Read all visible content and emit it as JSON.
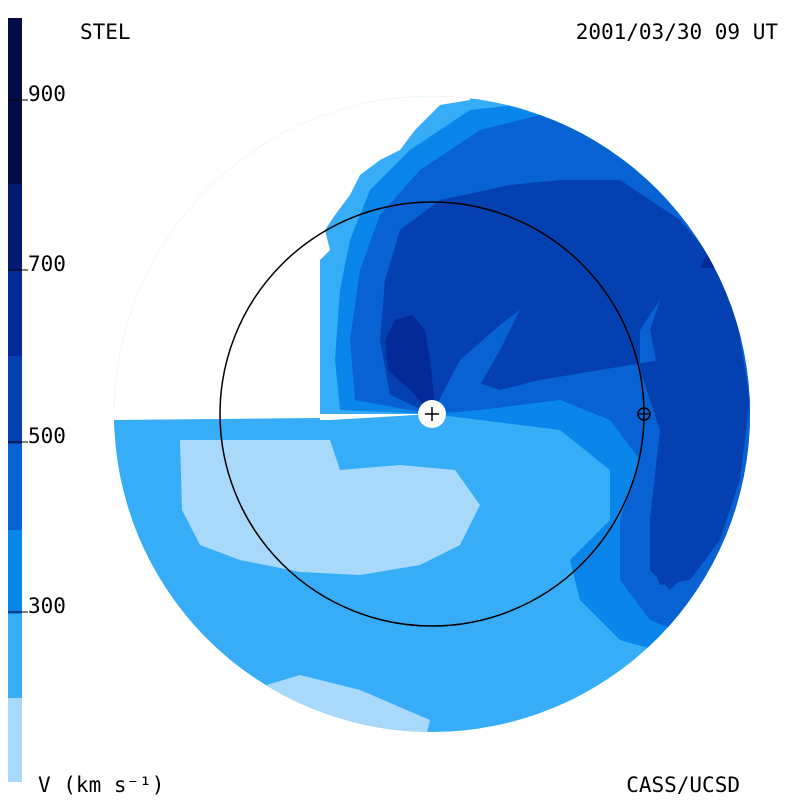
{
  "header": {
    "instrument": "STEL",
    "datetime": "2001/03/30 09 UT"
  },
  "footer": {
    "unit_label": "V (km s⁻¹)",
    "credit": "CASS/UCSD"
  },
  "colorbar": {
    "ticks": [
      "900",
      "700",
      "500",
      "300"
    ],
    "bands": [
      "#a8d8fa",
      "#36adf6",
      "#0a85ea",
      "#0862d4",
      "#0440b0",
      "#032a97",
      "#021a74",
      "#010c47"
    ]
  },
  "map": {
    "center_marker": "sun-plus-icon",
    "earth_marker": "earth-circle-plus-icon",
    "colors": {
      "v_very_low": "#a8d8fa",
      "v_low": "#36adf6",
      "v_mid": "#0a85ea",
      "v_midhigh": "#0862d4",
      "v_high": "#0440b0",
      "v_very_high": "#032a97",
      "v_peak": "#010c47"
    }
  }
}
